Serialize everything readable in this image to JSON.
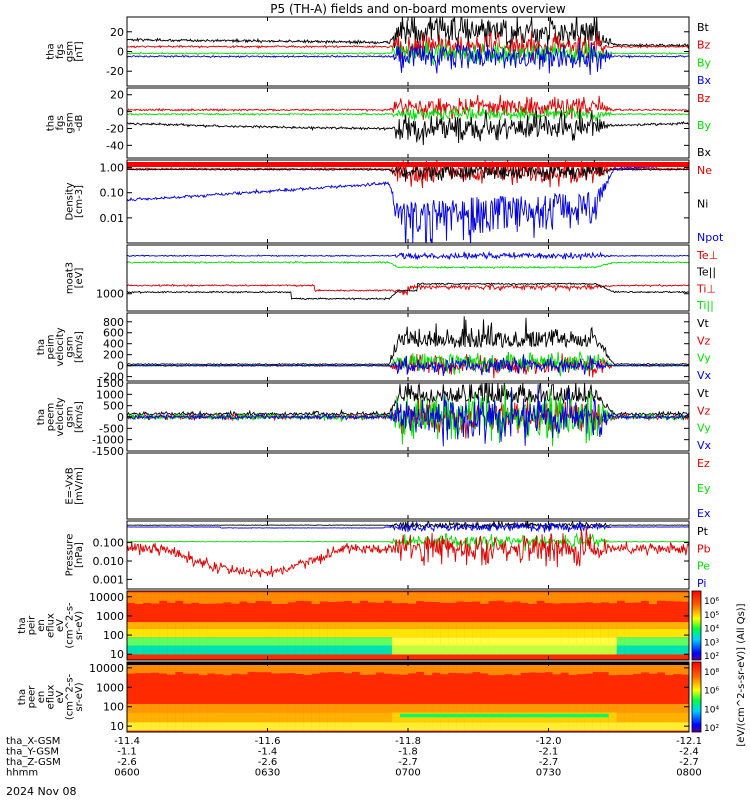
{
  "chart_data": {
    "type": "line",
    "title": "P5 (TH-A) fields and on-board moments overview",
    "date_label": "2024 Nov 08",
    "colors": {
      "black": "#000000",
      "red": "#dd0000",
      "green": "#00dd00",
      "blue": "#0000dd"
    },
    "panels": [
      {
        "id": "fgs-gsm",
        "ylabel": [
          "tha",
          "fgs",
          "gsm",
          "[nT]"
        ],
        "ylim": [
          -35,
          35
        ],
        "yticks": [
          {
            "v": 20,
            "label": "20"
          },
          {
            "v": 0,
            "label": "0"
          },
          {
            "v": -20,
            "label": "-20"
          }
        ],
        "legend": [
          {
            "name": "Bt",
            "color": "black"
          },
          {
            "name": "Bz",
            "color": "red"
          },
          {
            "name": "By",
            "color": "green"
          },
          {
            "name": "Bx",
            "color": "blue"
          }
        ]
      },
      {
        "id": "fgs-gse",
        "ylabel": [
          "tha",
          "fgs",
          "gsm",
          "-dB"
        ],
        "ylim": [
          -55,
          28
        ],
        "yticks": [
          {
            "v": 20,
            "label": "20"
          },
          {
            "v": 0,
            "label": "0"
          },
          {
            "v": -20,
            "label": "-20"
          },
          {
            "v": -40,
            "label": "-40"
          }
        ],
        "legend": [
          {
            "name": "Bz",
            "color": "red"
          },
          {
            "name": "By",
            "color": "green"
          },
          {
            "name": "Bx",
            "color": "black"
          }
        ]
      },
      {
        "id": "density",
        "ylabel": [
          "Density",
          "[cm-3]"
        ],
        "ylim": [
          0.001,
          2
        ],
        "yscale": "log",
        "yticks": [
          {
            "v": 1.0,
            "label": "1.00"
          },
          {
            "v": 0.1,
            "label": "0.10"
          },
          {
            "v": 0.01,
            "label": "0.01"
          }
        ],
        "legend": [
          {
            "name": "Ne",
            "color": "red"
          },
          {
            "name": "Ni",
            "color": "black"
          },
          {
            "name": "Npot",
            "color": "blue"
          }
        ]
      },
      {
        "id": "temperature",
        "ylabel": [
          "moat3",
          "[eV]"
        ],
        "ylim": [
          300,
          30000
        ],
        "yscale": "log",
        "yticks": [
          {
            "v": 1000,
            "label": "1000"
          }
        ],
        "legend": [
          {
            "name": "Te⊥",
            "color": "red"
          },
          {
            "name": "Te||",
            "color": "black"
          },
          {
            "name": "Ti⊥",
            "color": "red"
          },
          {
            "name": "Ti||",
            "color": "green"
          }
        ]
      },
      {
        "id": "peim-velocity",
        "ylabel": [
          "tha",
          "peim",
          "velocity",
          "gsm",
          "[km/s]"
        ],
        "ylim": [
          -280,
          960
        ],
        "yticks": [
          {
            "v": 800,
            "label": "800"
          },
          {
            "v": 600,
            "label": "600"
          },
          {
            "v": 400,
            "label": "400"
          },
          {
            "v": 200,
            "label": "200"
          },
          {
            "v": 0,
            "label": "0"
          },
          {
            "v": -200,
            "label": "-200"
          }
        ],
        "legend": [
          {
            "name": "Vt",
            "color": "black"
          },
          {
            "name": "Vz",
            "color": "red"
          },
          {
            "name": "Vy",
            "color": "green"
          },
          {
            "name": "Vx",
            "color": "blue"
          }
        ]
      },
      {
        "id": "peem-velocity",
        "ylabel": [
          "tha",
          "peem",
          "velocity",
          "gsm",
          "[km/s]"
        ],
        "ylim": [
          -1500,
          1500
        ],
        "yticks": [
          {
            "v": 1500,
            "label": "1500"
          },
          {
            "v": 1000,
            "label": "1000"
          },
          {
            "v": 500,
            "label": "500"
          },
          {
            "v": 0,
            "label": "0"
          },
          {
            "v": -500,
            "label": "-500"
          },
          {
            "v": -1000,
            "label": "-1000"
          },
          {
            "v": -1500,
            "label": "-1500"
          }
        ],
        "legend": [
          {
            "name": "Vt",
            "color": "black"
          },
          {
            "name": "Vz",
            "color": "red"
          },
          {
            "name": "Vy",
            "color": "green"
          },
          {
            "name": "Vx",
            "color": "blue"
          }
        ]
      },
      {
        "id": "efield",
        "ylabel": [
          "E=-VxB",
          "[mV/m]"
        ],
        "ylim": [
          -1,
          1
        ],
        "yticks": [],
        "legend": [
          {
            "name": "Ez",
            "color": "red"
          },
          {
            "name": "Ey",
            "color": "green"
          },
          {
            "name": "Ex",
            "color": "blue"
          }
        ]
      },
      {
        "id": "pressure",
        "ylabel": [
          "Pressure",
          "[nPa]"
        ],
        "ylim": [
          0.0003,
          1.5
        ],
        "yscale": "log",
        "yticks": [
          {
            "v": 0.1,
            "label": "0.100"
          },
          {
            "v": 0.01,
            "label": "0.010"
          },
          {
            "v": 0.001,
            "label": "0.001"
          }
        ],
        "legend": [
          {
            "name": "Pt",
            "color": "black"
          },
          {
            "name": "Pb",
            "color": "red"
          },
          {
            "name": "Pe",
            "color": "green"
          },
          {
            "name": "Pi",
            "color": "blue"
          }
        ]
      },
      {
        "id": "peir-spec",
        "ylabel": [
          "tha",
          "peir",
          "en",
          "eflux",
          "eV",
          "(cm^2-s-",
          "sr-eV)"
        ],
        "ylim": [
          5,
          20000
        ],
        "yscale": "log",
        "yticks": [
          {
            "v": 10000,
            "label": "10000"
          },
          {
            "v": 1000,
            "label": "1000"
          },
          {
            "v": 100,
            "label": "100"
          },
          {
            "v": 10,
            "label": "10"
          }
        ],
        "legend": []
      },
      {
        "id": "peer-spec",
        "ylabel": [
          "tha",
          "peer",
          "en",
          "eflux",
          "eV",
          "(cm^2-s-",
          "sr-eV)"
        ],
        "ylim": [
          5,
          20000
        ],
        "yscale": "log",
        "yticks": [
          {
            "v": 10000,
            "label": "10000"
          },
          {
            "v": 1000,
            "label": "1000"
          },
          {
            "v": 100,
            "label": "100"
          },
          {
            "v": 10,
            "label": "10"
          }
        ],
        "legend": []
      }
    ],
    "colorbar": {
      "label": "[eV/(cm^2-s-sr-eV)] (All Qs)]",
      "top_ticks": [
        "10⁶",
        "10⁵",
        "10⁴",
        "10³",
        "10²"
      ],
      "bottom_ticks": [
        "10⁸",
        "10⁶",
        "10⁴",
        "10²"
      ]
    },
    "x_axis": {
      "xlim": [
        0,
        120
      ],
      "tick_minutes": [
        0,
        30,
        60,
        90,
        120
      ],
      "rows": [
        {
          "label": "tha_X-GSM",
          "values": [
            "-11.4",
            "-11.6",
            "-11.8",
            "-12.0",
            "-12.1"
          ]
        },
        {
          "label": "tha_Y-GSM",
          "values": [
            "-1.1",
            "-1.4",
            "-1.8",
            "-2.1",
            "-2.4"
          ]
        },
        {
          "label": "tha_Z-GSM",
          "values": [
            "-2.6",
            "-2.6",
            "-2.7",
            "-2.7",
            "-2.7"
          ]
        },
        {
          "label": "hhmm",
          "values": [
            "0600",
            "0630",
            "0700",
            "0730",
            "0800"
          ]
        }
      ]
    }
  }
}
